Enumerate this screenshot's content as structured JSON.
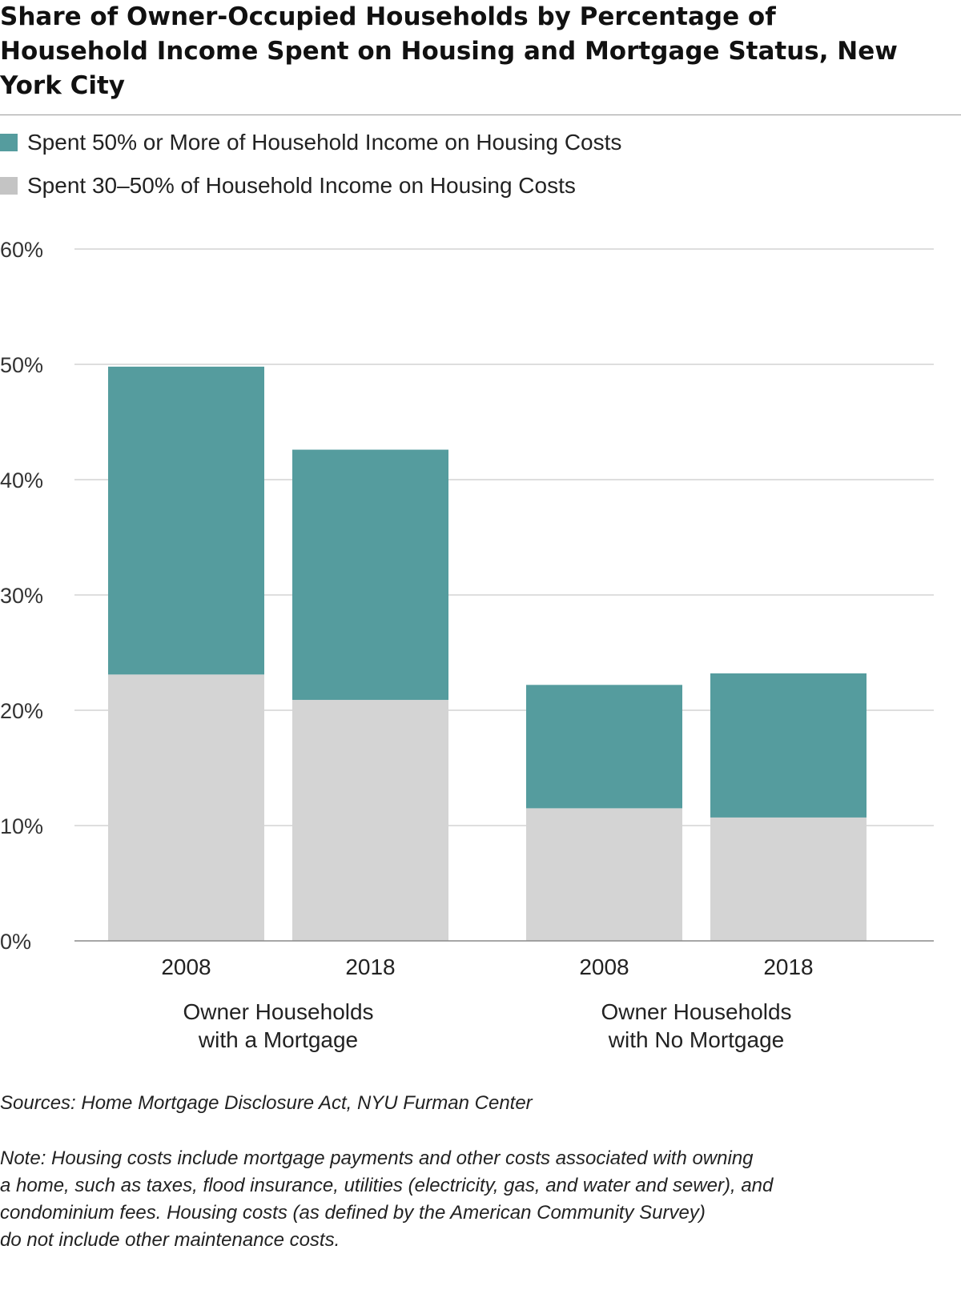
{
  "title": "Share of Owner-Occupied Households by Percentage of Household Income Spent on Housing and Mortgage Status, New York City",
  "colors": {
    "severe": "#559c9e",
    "moderate": "#d4d4d4",
    "grid": "#d3d3d3",
    "axis": "#8a8a8a"
  },
  "chart_data": {
    "type": "bar",
    "stacked": true,
    "categories": [
      "2008",
      "2018",
      "2008",
      "2018"
    ],
    "groups": [
      {
        "label": "Owner Households\nwith a Mortgage",
        "categories": [
          "2008",
          "2018"
        ]
      },
      {
        "label": "Owner Households\nwith No Mortgage",
        "categories": [
          "2008",
          "2018"
        ]
      }
    ],
    "series": [
      {
        "name": "Spent 30–50% of Household Income on Housing Costs",
        "color": "#d4d4d4",
        "values": [
          23.1,
          20.9,
          11.5,
          10.7
        ]
      },
      {
        "name": "Spent 50% or More of Household Income on Housing Costs",
        "color": "#559c9e",
        "values": [
          26.7,
          21.7,
          10.7,
          12.5
        ]
      }
    ],
    "ylim": [
      0,
      60
    ],
    "yticks": [
      0,
      10,
      20,
      30,
      40,
      50,
      60
    ],
    "ytick_labels": [
      "0%",
      "10%",
      "20%",
      "30%",
      "40%",
      "50%",
      "60%"
    ],
    "grid": true,
    "legend_position": "top-left"
  },
  "legend": [
    {
      "label": "Spent 50% or More of Household Income on Housing Costs",
      "color": "#559c9e"
    },
    {
      "label": "Spent 30–50% of Household Income on Housing Costs",
      "color": "#c4c4c4"
    }
  ],
  "source": "Sources: Home Mortgage Disclosure Act, NYU Furman Center",
  "note": "Note: Housing costs include mortgage payments and other costs associated with owning\na home, such as taxes, flood insurance, utilities (electricity, gas, and water and sewer), and\ncondominium fees. Housing costs (as defined by the American Community Survey)\ndo not include other maintenance costs."
}
